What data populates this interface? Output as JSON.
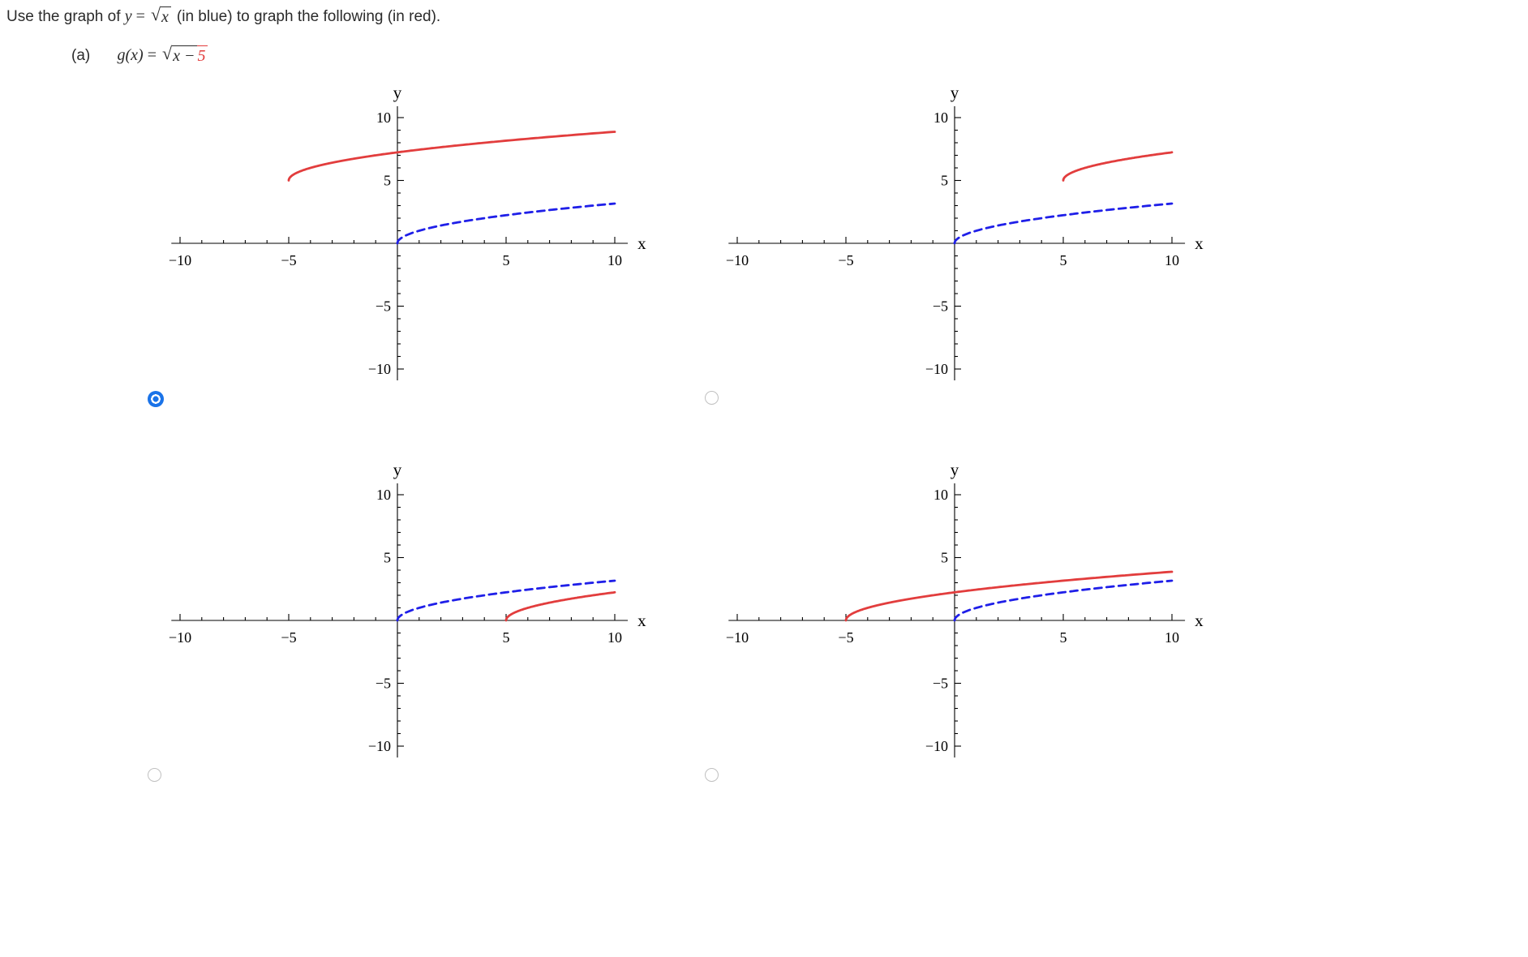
{
  "header": {
    "prefix": "Use the graph of",
    "lhs": "y",
    "equals": "=",
    "sqrt_arg": "x",
    "suffix": "(in blue) to graph the following (in red)."
  },
  "part": {
    "label": "(a)",
    "lhs": "g(x)",
    "equals": "=",
    "sqrt_arg_main": "x − ",
    "sqrt_arg_shift": "5"
  },
  "colors": {
    "blue": "#1f1fe8",
    "red": "#e23d3d",
    "axis": "#000000",
    "radio_selected": "#1a73e8",
    "radio_unselected": "#c0c0c0"
  },
  "chart_data": [
    {
      "type": "line",
      "title": "",
      "xlabel": "x",
      "ylabel": "y",
      "xlim": [
        -10,
        10
      ],
      "ylim": [
        -10,
        10
      ],
      "grid": false,
      "legend": false,
      "major_ticks": [
        -10,
        -5,
        5,
        10
      ],
      "tick_labels": [
        "−10",
        "−5",
        "5",
        "10"
      ],
      "series": [
        {
          "name": "y = sqrt(x)",
          "color": "blue",
          "dash": true,
          "shift_h": 0,
          "shift_k": 0,
          "x_start": 0,
          "x_end": 10
        },
        {
          "name": "y = sqrt(x+5)+5",
          "color": "red",
          "dash": false,
          "shift_h": -5,
          "shift_k": 5,
          "x_start": -5,
          "x_end": 10
        }
      ]
    },
    {
      "type": "line",
      "title": "",
      "xlabel": "x",
      "ylabel": "y",
      "xlim": [
        -10,
        10
      ],
      "ylim": [
        -10,
        10
      ],
      "grid": false,
      "legend": false,
      "major_ticks": [
        -10,
        -5,
        5,
        10
      ],
      "tick_labels": [
        "−10",
        "−5",
        "5",
        "10"
      ],
      "series": [
        {
          "name": "y = sqrt(x)",
          "color": "blue",
          "dash": true,
          "shift_h": 0,
          "shift_k": 0,
          "x_start": 0,
          "x_end": 10
        },
        {
          "name": "y = sqrt(x-5)+5",
          "color": "red",
          "dash": false,
          "shift_h": 5,
          "shift_k": 5,
          "x_start": 5,
          "x_end": 10
        }
      ]
    },
    {
      "type": "line",
      "title": "",
      "xlabel": "x",
      "ylabel": "y",
      "xlim": [
        -10,
        10
      ],
      "ylim": [
        -10,
        10
      ],
      "grid": false,
      "legend": false,
      "major_ticks": [
        -10,
        -5,
        5,
        10
      ],
      "tick_labels": [
        "−10",
        "−5",
        "5",
        "10"
      ],
      "series": [
        {
          "name": "y = sqrt(x)",
          "color": "blue",
          "dash": true,
          "shift_h": 0,
          "shift_k": 0,
          "x_start": 0,
          "x_end": 10
        },
        {
          "name": "y = sqrt(x-5)",
          "color": "red",
          "dash": false,
          "shift_h": 5,
          "shift_k": 0,
          "x_start": 5,
          "x_end": 10
        }
      ]
    },
    {
      "type": "line",
      "title": "",
      "xlabel": "x",
      "ylabel": "y",
      "xlim": [
        -10,
        10
      ],
      "ylim": [
        -10,
        10
      ],
      "grid": false,
      "legend": false,
      "major_ticks": [
        -10,
        -5,
        5,
        10
      ],
      "tick_labels": [
        "−10",
        "−5",
        "5",
        "10"
      ],
      "series": [
        {
          "name": "y = sqrt(x)",
          "color": "blue",
          "dash": true,
          "shift_h": 0,
          "shift_k": 0,
          "x_start": 0,
          "x_end": 10
        },
        {
          "name": "y = sqrt(x+5)",
          "color": "red",
          "dash": false,
          "shift_h": -5,
          "shift_k": 0,
          "x_start": -5,
          "x_end": 10
        }
      ]
    }
  ],
  "options": [
    {
      "id": "top-left",
      "selected": true
    },
    {
      "id": "top-right",
      "selected": false
    },
    {
      "id": "bottom-left",
      "selected": false
    },
    {
      "id": "bottom-right",
      "selected": false
    }
  ]
}
